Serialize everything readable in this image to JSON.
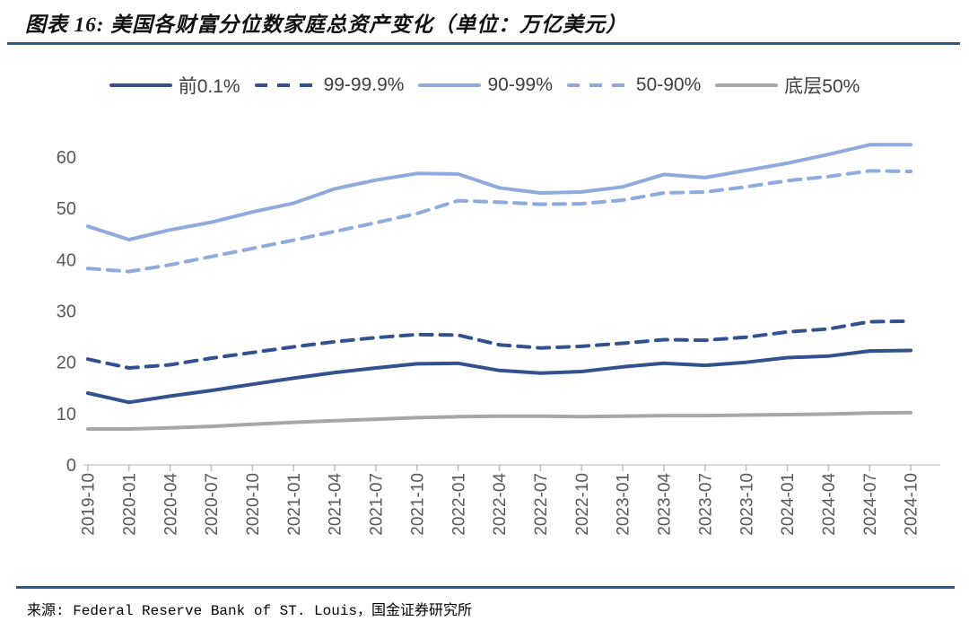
{
  "page": {
    "title": "图表 16: 美国各财富分位数家庭总资产变化（单位：万亿美元）",
    "source": "来源: Federal Reserve Bank of ST. Louis，国金证券研究所"
  },
  "colors": {
    "dark_blue": "#33518F",
    "light_blue": "#8FAADC",
    "gray": "#A7A7A7",
    "rule": "#2E5A84",
    "axis_label": "#595959",
    "axis_line": "#D9D9D9",
    "tick": "#BFBFBF",
    "legend_text": "#3F3F3F"
  },
  "chart_data": {
    "type": "line",
    "title": "美国各财富分位数家庭总资产变化",
    "unit": "万亿美元",
    "legend_position": "top",
    "grid": false,
    "ylim": [
      0,
      60
    ],
    "yticks": [
      0,
      10,
      20,
      30,
      40,
      50,
      60
    ],
    "categories": [
      "2019-10",
      "2020-01",
      "2020-04",
      "2020-07",
      "2020-10",
      "2021-01",
      "2021-04",
      "2021-07",
      "2021-10",
      "2022-01",
      "2022-04",
      "2022-07",
      "2022-10",
      "2023-01",
      "2023-04",
      "2023-07",
      "2023-10",
      "2024-01",
      "2024-04",
      "2024-07",
      "2024-10"
    ],
    "series": [
      {
        "name": "前0.1%",
        "color": "#33518F",
        "dash": false,
        "values": [
          14.0,
          12.2,
          13.4,
          14.5,
          15.7,
          16.9,
          18.0,
          18.9,
          19.7,
          19.8,
          18.4,
          17.9,
          18.2,
          19.1,
          19.8,
          19.4,
          20.0,
          20.9,
          21.2,
          22.2,
          22.3
        ]
      },
      {
        "name": "99-99.9%",
        "color": "#33518F",
        "dash": true,
        "values": [
          20.6,
          18.9,
          19.5,
          20.8,
          21.9,
          23.0,
          24.0,
          24.8,
          25.4,
          25.3,
          23.4,
          22.8,
          23.1,
          23.7,
          24.4,
          24.3,
          24.9,
          25.9,
          26.5,
          27.9,
          28.0
        ]
      },
      {
        "name": "90-99%",
        "color": "#8FAADC",
        "dash": false,
        "values": [
          46.5,
          43.9,
          45.8,
          47.3,
          49.3,
          51.0,
          53.8,
          55.5,
          56.8,
          56.7,
          54.0,
          53.0,
          53.2,
          54.2,
          56.6,
          56.0,
          57.4,
          58.8,
          60.5,
          62.4,
          62.4
        ]
      },
      {
        "name": "50-90%",
        "color": "#8FAADC",
        "dash": true,
        "values": [
          38.3,
          37.7,
          39.0,
          40.6,
          42.2,
          43.8,
          45.5,
          47.2,
          49.0,
          51.5,
          51.2,
          50.8,
          50.9,
          51.6,
          53.0,
          53.2,
          54.2,
          55.4,
          56.2,
          57.3,
          57.2
        ]
      },
      {
        "name": "底层50%",
        "color": "#A7A7A7",
        "dash": false,
        "values": [
          7.0,
          7.0,
          7.2,
          7.5,
          7.9,
          8.3,
          8.6,
          8.9,
          9.2,
          9.4,
          9.5,
          9.5,
          9.4,
          9.5,
          9.6,
          9.6,
          9.7,
          9.8,
          9.9,
          10.1,
          10.2
        ]
      }
    ]
  }
}
